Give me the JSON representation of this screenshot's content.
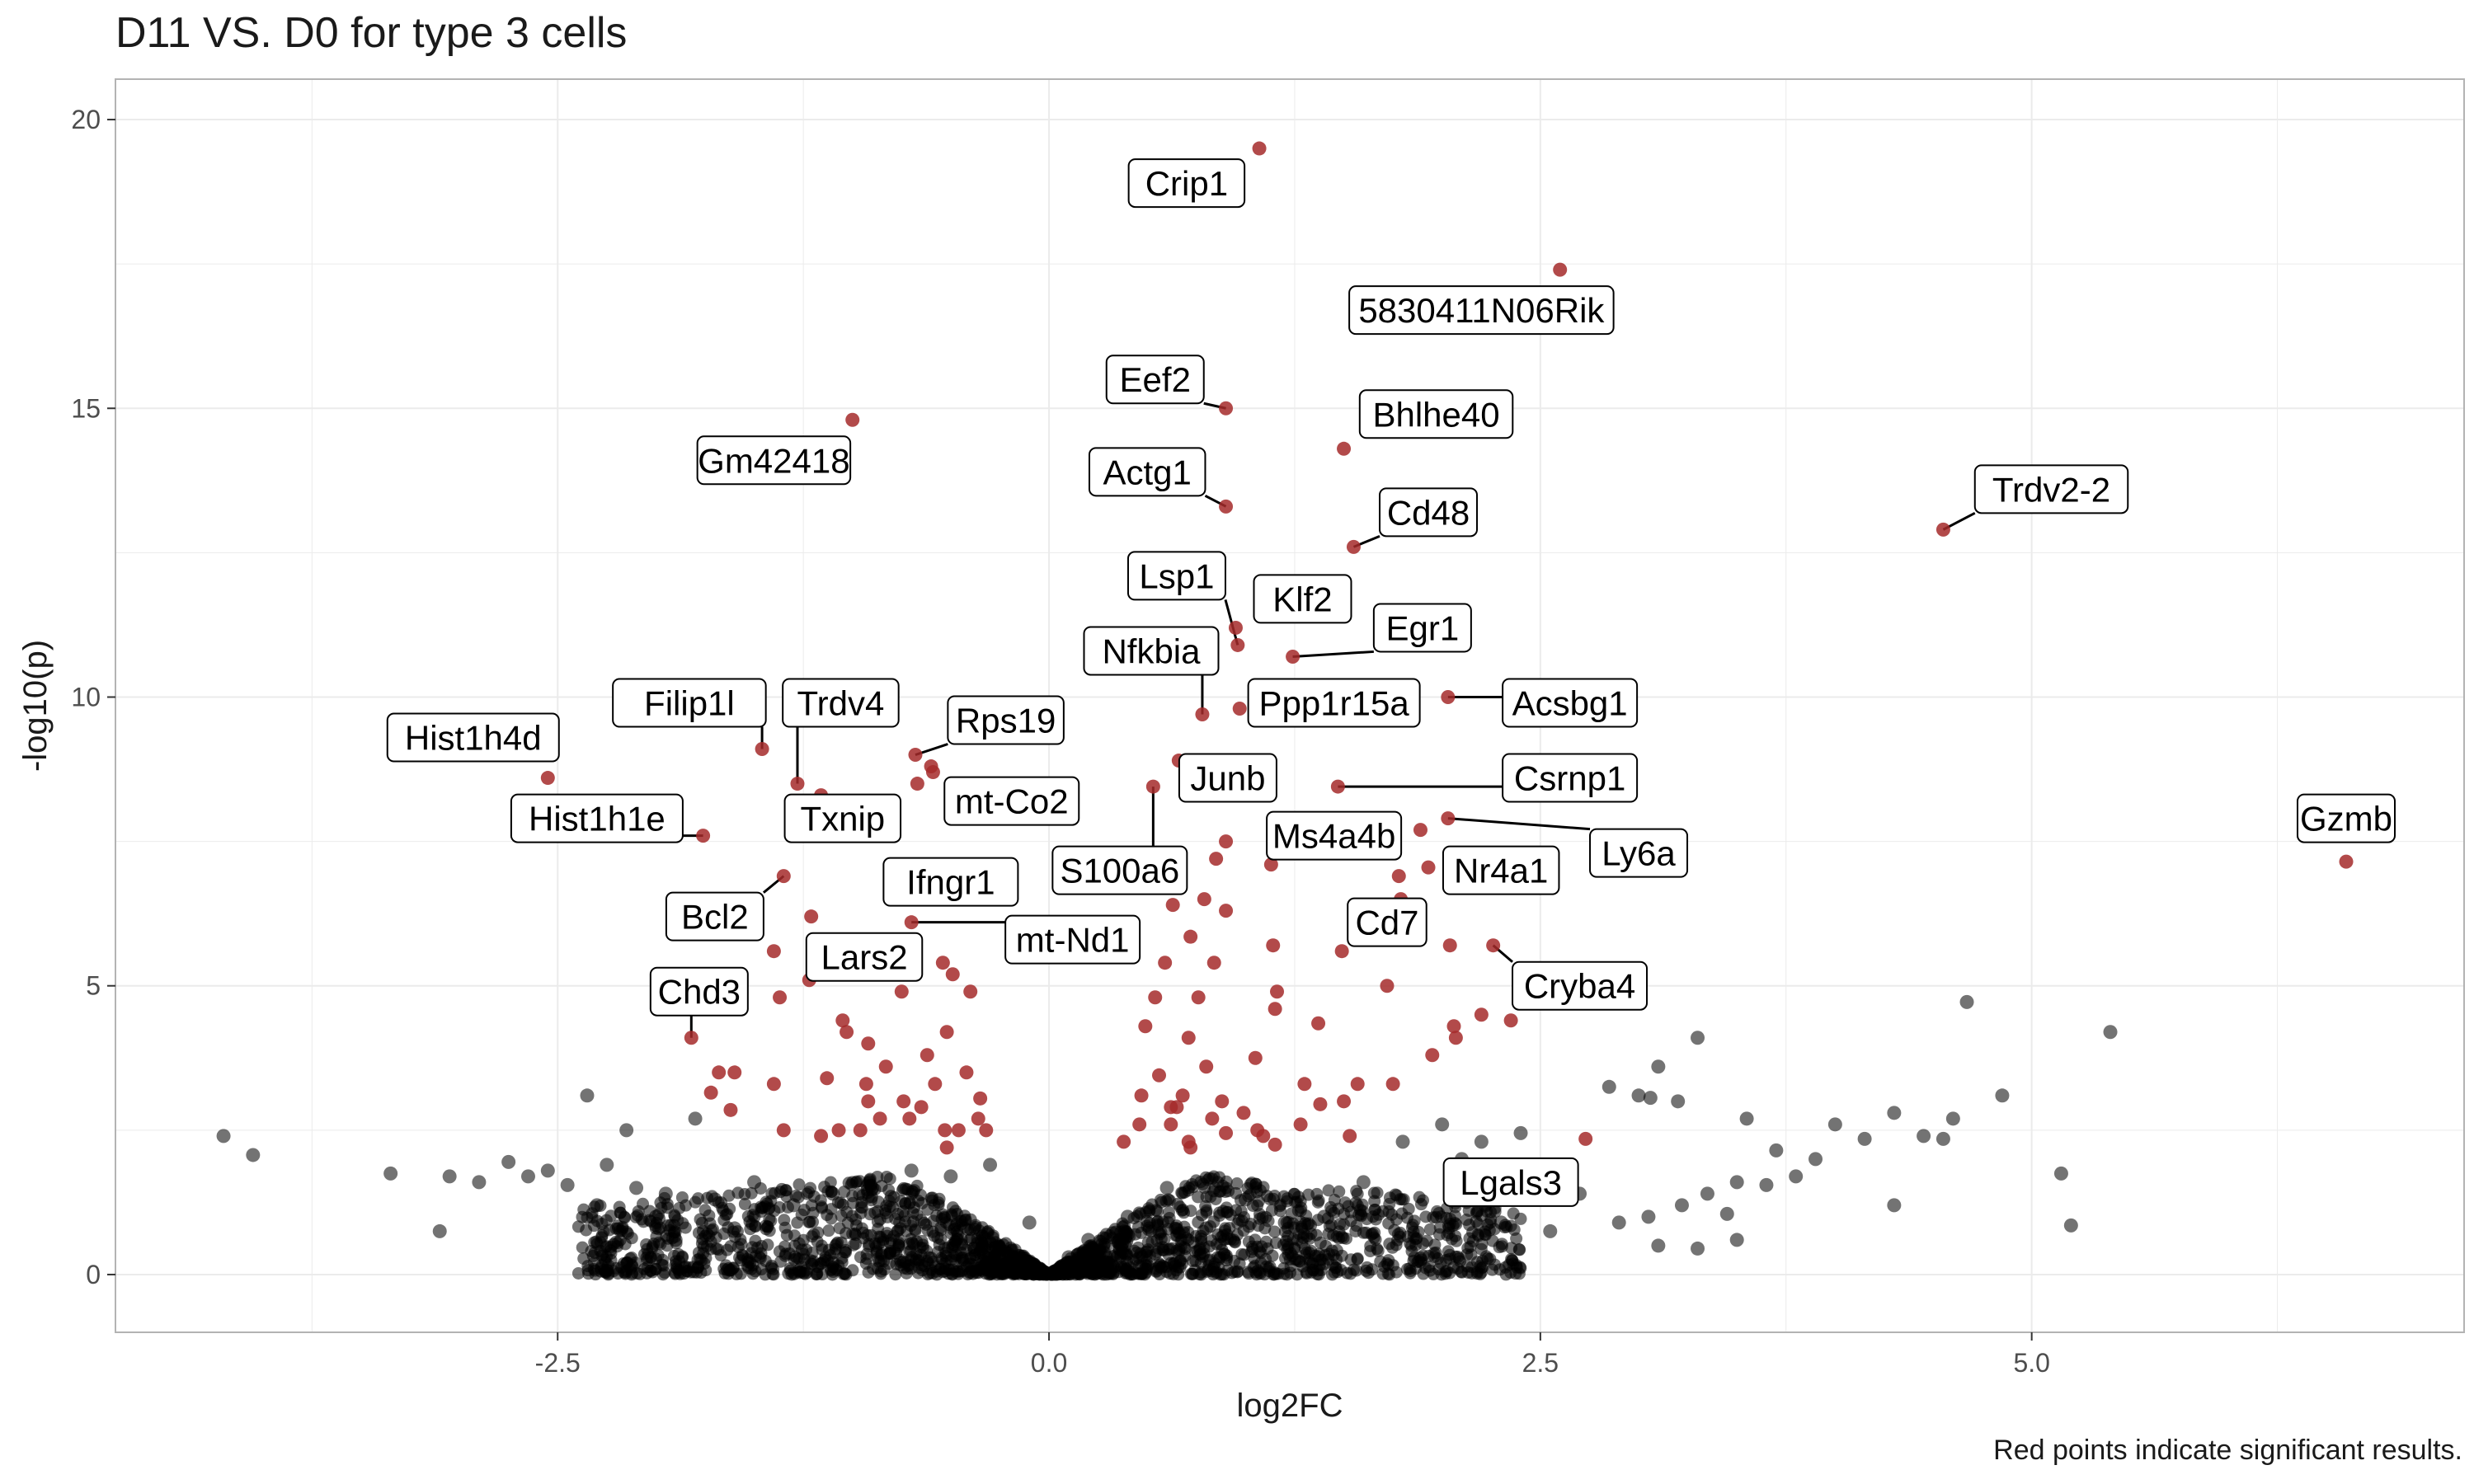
{
  "chart_data": {
    "type": "scatter",
    "title": "D11 VS. D0 for type 3 cells",
    "caption": "Red points indicate significant results.",
    "xlabel": "log2FC",
    "ylabel": "-log10(p)",
    "xlim": [
      -4.75,
      7.2
    ],
    "ylim": [
      -1.0,
      20.7
    ],
    "x_ticks": [
      -2.5,
      0.0,
      2.5,
      5.0
    ],
    "x_tick_labels": [
      "-2.5",
      "0.0",
      "2.5",
      "5.0"
    ],
    "y_ticks": [
      0,
      5,
      10,
      15,
      20
    ],
    "y_tick_labels": [
      "0",
      "5",
      "10",
      "15",
      "20"
    ],
    "grid": true,
    "colors": {
      "significant": "#a52a2a",
      "nonsignificant": "#000000",
      "point_alpha": 0.55
    },
    "series": [
      {
        "group": "significant",
        "points": [
          [
            1.07,
            19.5
          ],
          [
            2.6,
            17.4
          ],
          [
            0.9,
            15.0
          ],
          [
            1.5,
            14.3
          ],
          [
            -1.0,
            14.8
          ],
          [
            4.55,
            12.9
          ],
          [
            0.9,
            13.3
          ],
          [
            1.55,
            12.6
          ],
          [
            0.95,
            11.2
          ],
          [
            0.96,
            10.9
          ],
          [
            1.24,
            10.7
          ],
          [
            0.78,
            9.7
          ],
          [
            0.97,
            9.8
          ],
          [
            2.03,
            10.0
          ],
          [
            6.6,
            7.15
          ],
          [
            -2.55,
            8.6
          ],
          [
            -1.46,
            9.1
          ],
          [
            -1.28,
            8.5
          ],
          [
            -1.16,
            8.3
          ],
          [
            -0.68,
            9.0
          ],
          [
            -0.59,
            8.7
          ],
          [
            -0.67,
            8.5
          ],
          [
            -0.6,
            8.8
          ],
          [
            0.66,
            8.9
          ],
          [
            0.53,
            8.45
          ],
          [
            1.47,
            8.45
          ],
          [
            -1.76,
            7.6
          ],
          [
            2.03,
            7.9
          ],
          [
            1.89,
            7.7
          ],
          [
            1.13,
            7.1
          ],
          [
            1.93,
            7.05
          ],
          [
            0.85,
            7.2
          ],
          [
            0.9,
            7.5
          ],
          [
            0.6,
            7.3
          ],
          [
            1.78,
            6.9
          ],
          [
            -1.35,
            6.9
          ],
          [
            -1.21,
            6.2
          ],
          [
            -0.7,
            6.1
          ],
          [
            1.79,
            6.5
          ],
          [
            0.79,
            6.5
          ],
          [
            0.9,
            6.3
          ],
          [
            0.63,
            6.4
          ],
          [
            -1.4,
            5.6
          ],
          [
            -1.22,
            5.1
          ],
          [
            -0.54,
            5.4
          ],
          [
            -0.49,
            5.2
          ],
          [
            0.72,
            5.85
          ],
          [
            0.84,
            5.4
          ],
          [
            0.59,
            5.4
          ],
          [
            1.14,
            5.7
          ],
          [
            1.49,
            5.6
          ],
          [
            2.04,
            5.7
          ],
          [
            2.26,
            5.7
          ],
          [
            0.54,
            4.8
          ],
          [
            0.76,
            4.8
          ],
          [
            1.16,
            4.9
          ],
          [
            1.72,
            5.0
          ],
          [
            -1.37,
            4.8
          ],
          [
            -0.75,
            4.9
          ],
          [
            -0.4,
            4.9
          ],
          [
            -1.05,
            4.4
          ],
          [
            -1.03,
            4.2
          ],
          [
            -1.82,
            4.1
          ],
          [
            0.49,
            4.3
          ],
          [
            0.71,
            4.1
          ],
          [
            1.15,
            4.6
          ],
          [
            1.37,
            4.35
          ],
          [
            2.06,
            4.3
          ],
          [
            2.2,
            4.5
          ],
          [
            2.35,
            4.4
          ],
          [
            1.95,
            3.8
          ],
          [
            2.07,
            4.1
          ],
          [
            -0.92,
            4.0
          ],
          [
            -0.52,
            4.2
          ],
          [
            -0.62,
            3.8
          ],
          [
            -0.83,
            3.6
          ],
          [
            -0.42,
            3.5
          ],
          [
            -1.13,
            3.4
          ],
          [
            -1.68,
            3.5
          ],
          [
            -1.6,
            3.5
          ],
          [
            -1.4,
            3.3
          ],
          [
            -0.93,
            3.3
          ],
          [
            -0.92,
            3.0
          ],
          [
            -0.74,
            3.0
          ],
          [
            -0.35,
            3.05
          ],
          [
            -1.72,
            3.15
          ],
          [
            -1.62,
            2.85
          ],
          [
            0.47,
            3.1
          ],
          [
            0.56,
            3.45
          ],
          [
            0.8,
            3.6
          ],
          [
            1.05,
            3.75
          ],
          [
            1.3,
            3.3
          ],
          [
            1.5,
            3.0
          ],
          [
            1.38,
            2.95
          ],
          [
            1.57,
            3.3
          ],
          [
            1.75,
            3.3
          ],
          [
            0.46,
            2.6
          ],
          [
            0.62,
            2.9
          ],
          [
            0.83,
            2.7
          ],
          [
            1.06,
            2.5
          ],
          [
            0.71,
            2.3
          ],
          [
            1.15,
            2.25
          ],
          [
            1.53,
            2.4
          ],
          [
            1.28,
            2.6
          ],
          [
            0.38,
            2.3
          ],
          [
            -0.36,
            2.7
          ],
          [
            -0.46,
            2.5
          ],
          [
            -0.53,
            2.5
          ],
          [
            -0.71,
            2.7
          ],
          [
            -0.96,
            2.5
          ],
          [
            -1.35,
            2.5
          ],
          [
            -1.07,
            2.5
          ],
          [
            -0.86,
            2.7
          ],
          [
            -0.32,
            2.5
          ],
          [
            2.73,
            2.35
          ],
          [
            0.62,
            2.6
          ],
          [
            0.88,
            3.0
          ],
          [
            0.65,
            2.9
          ],
          [
            0.68,
            3.1
          ],
          [
            0.99,
            2.8
          ],
          [
            -0.58,
            3.3
          ],
          [
            -0.65,
            2.9
          ],
          [
            0.72,
            2.2
          ],
          [
            0.9,
            2.45
          ],
          [
            1.09,
            2.4
          ],
          [
            -1.16,
            2.4
          ],
          [
            -0.52,
            2.2
          ]
        ]
      },
      {
        "group": "nonsignificant",
        "points": [
          [
            -4.2,
            2.4
          ],
          [
            -4.05,
            2.07
          ],
          [
            -3.35,
            1.75
          ],
          [
            -3.05,
            1.7
          ],
          [
            -3.1,
            0.75
          ],
          [
            -2.9,
            1.6
          ],
          [
            -2.75,
            1.95
          ],
          [
            -2.65,
            1.7
          ],
          [
            -2.55,
            1.8
          ],
          [
            -2.45,
            1.55
          ],
          [
            -2.25,
            1.9
          ],
          [
            -2.1,
            1.5
          ],
          [
            -1.95,
            1.4
          ],
          [
            -1.8,
            2.7
          ],
          [
            -2.35,
            3.1
          ],
          [
            -2.15,
            2.5
          ],
          [
            -2.3,
            1.2
          ],
          [
            -2.0,
            1.0
          ],
          [
            -1.7,
            1.3
          ],
          [
            -1.5,
            1.6
          ],
          [
            -1.6,
            0.8
          ],
          [
            -1.3,
            1.2
          ],
          [
            -1.1,
            1.4
          ],
          [
            -0.9,
            1.5
          ],
          [
            -0.7,
            1.8
          ],
          [
            -0.5,
            1.7
          ],
          [
            -0.3,
            1.9
          ],
          [
            -0.1,
            0.9
          ],
          [
            -1.1,
            0.2
          ],
          [
            -1.9,
            0.6
          ],
          [
            4.67,
            4.72
          ],
          [
            5.4,
            4.2
          ],
          [
            4.85,
            3.1
          ],
          [
            3.3,
            4.1
          ],
          [
            3.1,
            3.6
          ],
          [
            2.85,
            3.25
          ],
          [
            3.2,
            3.0
          ],
          [
            3.0,
            3.1
          ],
          [
            3.06,
            3.06
          ],
          [
            3.55,
            2.7
          ],
          [
            4.0,
            2.6
          ],
          [
            4.15,
            2.35
          ],
          [
            4.3,
            2.8
          ],
          [
            4.45,
            2.4
          ],
          [
            4.6,
            2.7
          ],
          [
            4.55,
            2.35
          ],
          [
            3.9,
            2.0
          ],
          [
            3.8,
            1.7
          ],
          [
            3.7,
            2.15
          ],
          [
            3.5,
            1.6
          ],
          [
            3.35,
            1.4
          ],
          [
            3.22,
            1.2
          ],
          [
            3.05,
            1.0
          ],
          [
            3.3,
            0.45
          ],
          [
            3.1,
            0.5
          ],
          [
            3.5,
            0.6
          ],
          [
            4.3,
            1.2
          ],
          [
            5.15,
            1.75
          ],
          [
            5.2,
            0.85
          ],
          [
            2.7,
            1.4
          ],
          [
            2.5,
            1.3
          ],
          [
            2.2,
            2.3
          ],
          [
            2.4,
            2.45
          ],
          [
            2.1,
            2.0
          ],
          [
            2.0,
            2.6
          ],
          [
            1.8,
            2.3
          ],
          [
            1.6,
            1.6
          ],
          [
            1.4,
            1.0
          ],
          [
            1.2,
            0.9
          ],
          [
            1.0,
            1.3
          ],
          [
            0.8,
            0.8
          ],
          [
            0.6,
            1.5
          ],
          [
            0.4,
            1.0
          ],
          [
            0.2,
            0.6
          ],
          [
            0.1,
            0.3
          ],
          [
            2.3,
            0.9
          ],
          [
            2.55,
            0.75
          ],
          [
            2.9,
            0.9
          ],
          [
            3.45,
            1.05
          ],
          [
            3.65,
            1.55
          ]
        ]
      }
    ],
    "labels": [
      {
        "text": "Crip1",
        "x": 0.7,
        "y": 18.9,
        "px": 1.07,
        "py": 19.5
      },
      {
        "text": "5830411N06Rik",
        "x": 2.2,
        "y": 16.7,
        "px": 2.6,
        "py": 17.4
      },
      {
        "text": "Eef2",
        "x": 0.54,
        "y": 15.5,
        "px": 0.9,
        "py": 15.0
      },
      {
        "text": "Bhlhe40",
        "x": 1.97,
        "y": 14.9,
        "px": 1.5,
        "py": 14.3
      },
      {
        "text": "Gm42418",
        "x": -1.4,
        "y": 14.1,
        "px": -1.0,
        "py": 14.8
      },
      {
        "text": "Actg1",
        "x": 0.5,
        "y": 13.9,
        "px": 0.9,
        "py": 13.3
      },
      {
        "text": "Trdv2-2",
        "x": 5.1,
        "y": 13.6,
        "px": 4.55,
        "py": 12.9
      },
      {
        "text": "Cd48",
        "x": 1.93,
        "y": 13.2,
        "px": 1.55,
        "py": 12.6
      },
      {
        "text": "Lsp1",
        "x": 0.65,
        "y": 12.1,
        "px": 0.96,
        "py": 10.9
      },
      {
        "text": "Klf2",
        "x": 1.29,
        "y": 11.7,
        "px": 0.95,
        "py": 11.2
      },
      {
        "text": "Egr1",
        "x": 1.9,
        "y": 11.2,
        "px": 1.24,
        "py": 10.7
      },
      {
        "text": "Nfkbia",
        "x": 0.52,
        "y": 10.8,
        "px": 0.78,
        "py": 9.7
      },
      {
        "text": "Ppp1r15a",
        "x": 1.45,
        "y": 9.9,
        "px": 0.97,
        "py": 9.8
      },
      {
        "text": "Acsbg1",
        "x": 2.65,
        "y": 9.9,
        "px": 2.03,
        "py": 10.0
      },
      {
        "text": "Filip1l",
        "x": -1.83,
        "y": 9.9,
        "px": -1.46,
        "py": 9.1
      },
      {
        "text": "Trdv4",
        "x": -1.06,
        "y": 9.9,
        "px": -1.28,
        "py": 8.5
      },
      {
        "text": "Rps19",
        "x": -0.22,
        "y": 9.6,
        "px": -0.68,
        "py": 9.0
      },
      {
        "text": "Hist1h4d",
        "x": -2.93,
        "y": 9.3,
        "px": -2.55,
        "py": 8.6
      },
      {
        "text": "Junb",
        "x": 0.91,
        "y": 8.6,
        "px": 0.66,
        "py": 8.9
      },
      {
        "text": "Csrnp1",
        "x": 2.65,
        "y": 8.6,
        "px": 1.47,
        "py": 8.45
      },
      {
        "text": "mt-Co2",
        "x": -0.19,
        "y": 8.2,
        "px": -0.6,
        "py": 8.8
      },
      {
        "text": "Hist1h1e",
        "x": -2.3,
        "y": 7.9,
        "px": -1.76,
        "py": 7.6
      },
      {
        "text": "Txnip",
        "x": -1.05,
        "y": 7.9,
        "px": -0.7,
        "py": 7.3
      },
      {
        "text": "Ms4a4b",
        "x": 1.45,
        "y": 7.6,
        "px": 1.13,
        "py": 7.1
      },
      {
        "text": "Gzmb",
        "x": 6.6,
        "y": 7.9,
        "px": 6.6,
        "py": 7.15
      },
      {
        "text": "S100a6",
        "x": 0.36,
        "y": 7.0,
        "px": 0.53,
        "py": 8.45
      },
      {
        "text": "Nr4a1",
        "x": 2.3,
        "y": 7.0,
        "px": 1.93,
        "py": 7.05
      },
      {
        "text": "Ly6a",
        "x": 3.0,
        "y": 7.3,
        "px": 2.03,
        "py": 7.9
      },
      {
        "text": "Ifngr1",
        "x": -0.5,
        "y": 6.8,
        "px": -0.8,
        "py": 7.3
      },
      {
        "text": "Bcl2",
        "x": -1.7,
        "y": 6.2,
        "px": -1.35,
        "py": 6.9
      },
      {
        "text": "Cd7",
        "x": 1.72,
        "y": 6.1,
        "px": 1.49,
        "py": 5.6
      },
      {
        "text": "mt-Nd1",
        "x": 0.12,
        "y": 5.8,
        "px": -0.7,
        "py": 6.1
      },
      {
        "text": "Lars2",
        "x": -0.94,
        "y": 5.5,
        "px": -1.22,
        "py": 5.1
      },
      {
        "text": "Cryba4",
        "x": 2.7,
        "y": 5.0,
        "px": 2.26,
        "py": 5.7
      },
      {
        "text": "Chd3",
        "x": -1.78,
        "y": 4.9,
        "px": -1.82,
        "py": 4.1
      },
      {
        "text": "Lgals3",
        "x": 2.35,
        "y": 1.6,
        "px": 2.1,
        "py": 2.0
      }
    ]
  }
}
